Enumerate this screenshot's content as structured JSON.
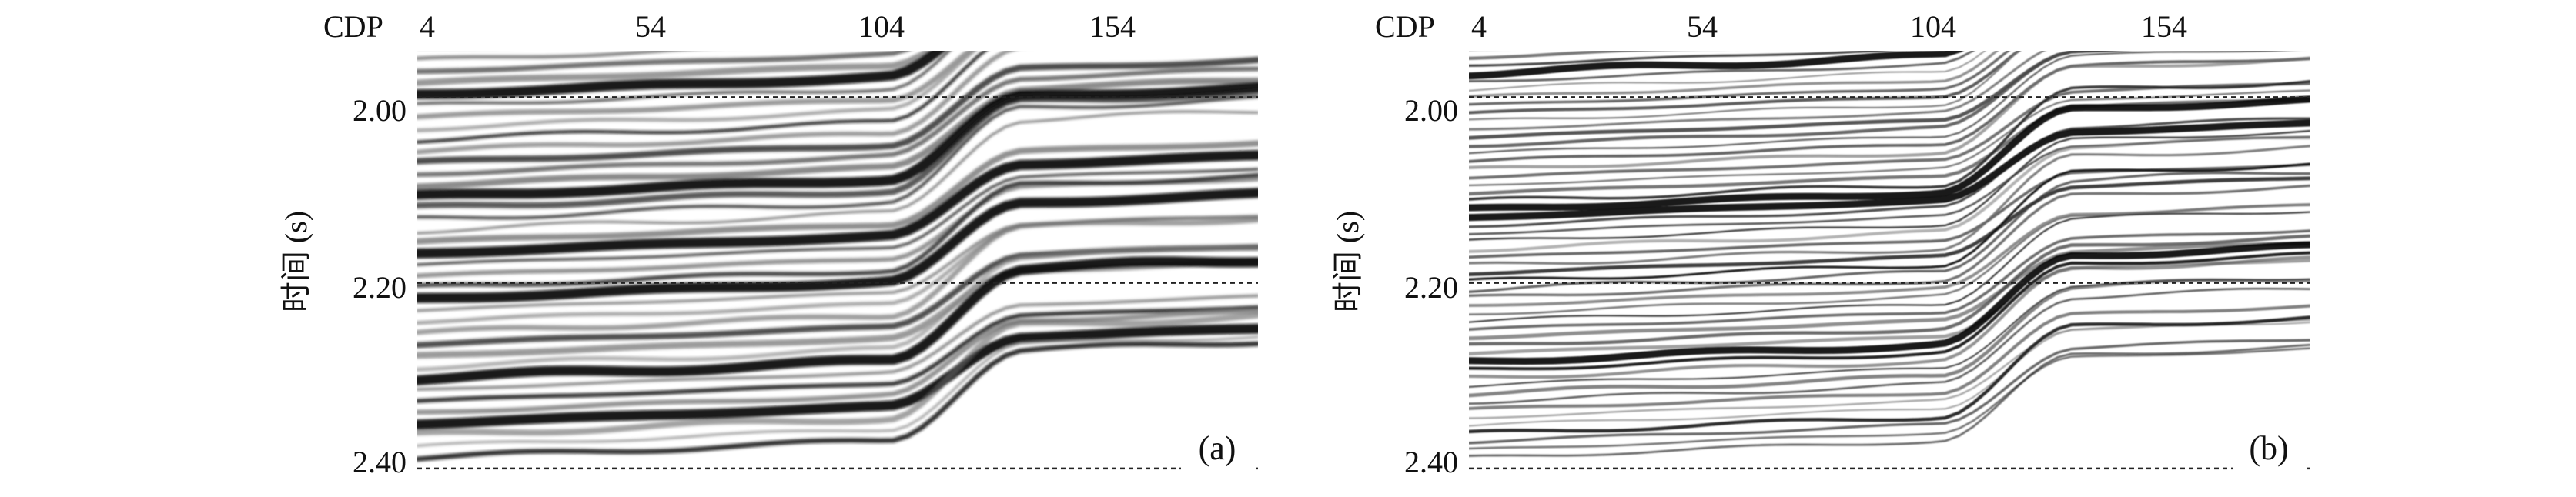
{
  "figure": {
    "panels": [
      {
        "label": "(a)",
        "x_axis_name": "CDP",
        "x_ticks": [
          "4",
          "54",
          "104",
          "154"
        ],
        "y_axis_label": "时间 (s)",
        "y_ticks": [
          "2.00",
          "2.20",
          "2.40"
        ]
      },
      {
        "label": "(b)",
        "x_axis_name": "CDP",
        "x_ticks": [
          "4",
          "54",
          "104",
          "154"
        ],
        "y_axis_label": "时间 (s)",
        "y_ticks": [
          "2.00",
          "2.20",
          "2.40"
        ]
      }
    ]
  },
  "chart_data": [
    {
      "type": "heatmap",
      "title": "",
      "xlabel": "CDP",
      "ylabel": "时间 (s)",
      "x_ticks": [
        4,
        54,
        104,
        154
      ],
      "xlim": [
        4,
        184
      ],
      "y_ticks": [
        2.0,
        2.2,
        2.4
      ],
      "ylim": [
        1.95,
        2.41
      ],
      "reference_lines_y": [
        2.0,
        2.2,
        2.4
      ],
      "colormap": "grayscale-wiggle",
      "panel_label": "(a)"
    },
    {
      "type": "heatmap",
      "title": "",
      "xlabel": "CDP",
      "ylabel": "时间 (s)",
      "x_ticks": [
        4,
        54,
        104,
        154
      ],
      "xlim": [
        4,
        184
      ],
      "y_ticks": [
        2.0,
        2.2,
        2.4
      ],
      "ylim": [
        1.95,
        2.41
      ],
      "reference_lines_y": [
        2.0,
        2.2,
        2.4
      ],
      "colormap": "grayscale-wiggle",
      "panel_label": "(b)"
    }
  ]
}
